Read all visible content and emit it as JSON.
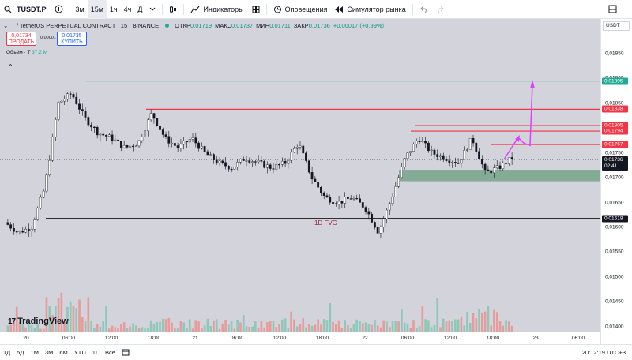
{
  "toolbar": {
    "symbol": "TUSDT.P",
    "intervals": [
      "3м",
      "15м",
      "1ч",
      "4ч",
      "Д"
    ],
    "active_interval": "15м",
    "indicators_label": "Индикаторы",
    "alerts_label": "Оповещения",
    "replay_label": "Симулятор рынка"
  },
  "chart": {
    "title": "T / TetherUS PERPETUAL CONTRACT · 15 · BINANCE",
    "ohlc": {
      "open_label": "ОТКР",
      "open": "0,01719",
      "high_label": "МАКС",
      "high": "0,01737",
      "low_label": "МИН",
      "low": "0,01711",
      "close_label": "ЗАКР",
      "close": "0,01736",
      "change": "+0,00017 (+0,99%)"
    },
    "sell_price": "0,01734",
    "sell_label": "ПРОДАТЬ",
    "spread": "0,00001",
    "buy_price": "0,01735",
    "buy_label": "КУПИТЬ",
    "volume_label": "Объём · T",
    "volume_value": "37,2 M",
    "fvg_label": "1D FVG",
    "logo_text": "TradingView",
    "currency": "USDT"
  },
  "price_axis": {
    "labels": [
      "0,02000",
      "0,01950",
      "0,01900",
      "0,01850",
      "0,01800",
      "0,01750",
      "0,01700",
      "0,01650",
      "0,01600",
      "0,01550",
      "0,01500",
      "0,01450",
      "0,01400"
    ],
    "tags": [
      {
        "text": "0,01895",
        "color": "#22ab94"
      },
      {
        "text": "0,01838",
        "color": "#f23645"
      },
      {
        "text": "0,01805",
        "color": "#f23645"
      },
      {
        "text": "0,01794",
        "color": "#f23645"
      },
      {
        "text": "0,01767",
        "color": "#f23645"
      },
      {
        "text": "0,01618",
        "color": "#131722"
      }
    ],
    "current_price": "0,01736",
    "countdown": "02:41"
  },
  "time_axis": [
    "20",
    "06:00",
    "12:00",
    "18:00",
    "21",
    "06:00",
    "12:00",
    "18:00",
    "22",
    "06:00",
    "12:00",
    "18:00",
    "23",
    "06:00"
  ],
  "bottom_bar": {
    "ranges": [
      "1Д",
      "5Д",
      "1М",
      "3М",
      "6М",
      "YTD",
      "1Г",
      "Все"
    ],
    "clock": "20:12:19 UTC+3"
  },
  "chart_data": {
    "type": "line",
    "series": [
      {
        "name": "",
        "values": [
          0.0161,
          0.0159,
          0.016,
          0.0168,
          0.0185,
          0.0187,
          0.0182,
          0.0179,
          0.0178,
          0.0176,
          0.0177,
          0.0183,
          0.0178,
          0.0176,
          0.0178,
          0.0175,
          0.0173,
          0.0172,
          0.0174,
          0.0173,
          0.0172,
          0.0173,
          0.0177,
          0.017,
          0.0166,
          0.0165,
          0.0166,
          0.0164,
          0.0159,
          0.0166,
          0.0174,
          0.0178,
          0.0175,
          0.0174,
          0.0173,
          0.0178,
          0.0171,
          0.0172,
          0.0174
        ]
      }
    ],
    "horizontal_levels": [
      0.01895,
      0.01838,
      0.01805,
      0.01794,
      0.01767,
      0.01618
    ],
    "zone": [
      0.01693,
      0.01716
    ],
    "ylim": [
      0.0139,
      0.0202
    ]
  },
  "colors": {
    "green_line": "#22ab94",
    "red_line": "#f23645",
    "arrow": "#e040fb",
    "zone": "#6a9e7f"
  }
}
